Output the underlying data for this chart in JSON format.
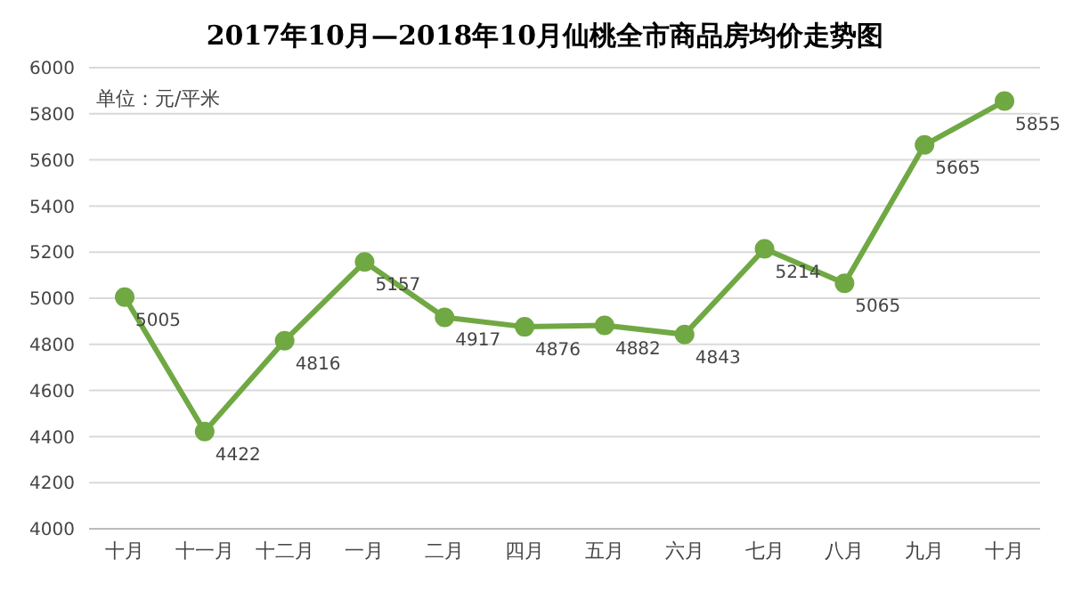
{
  "chart_data": {
    "type": "line",
    "title": "2017年10月—2018年10月仙桃全市商品房均价走势图",
    "annotations": [
      "单位：元/平米"
    ],
    "categories": [
      "十月",
      "十一月",
      "十二月",
      "一月",
      "二月",
      "四月",
      "五月",
      "六月",
      "七月",
      "八月",
      "九月",
      "十月"
    ],
    "series": [
      {
        "color": "#70a843",
        "values": [
          5005,
          4422,
          4816,
          5157,
          4917,
          4876,
          4882,
          4843,
          5214,
          5065,
          5665,
          5855
        ]
      }
    ],
    "ylim": [
      4000,
      6000
    ],
    "yticks": [
      4000,
      4200,
      4400,
      4600,
      4800,
      5000,
      5200,
      5400,
      5600,
      5800,
      6000
    ],
    "grid": "y",
    "data_labels": true,
    "marker": "circle",
    "line_style": "solid",
    "legend": false
  }
}
